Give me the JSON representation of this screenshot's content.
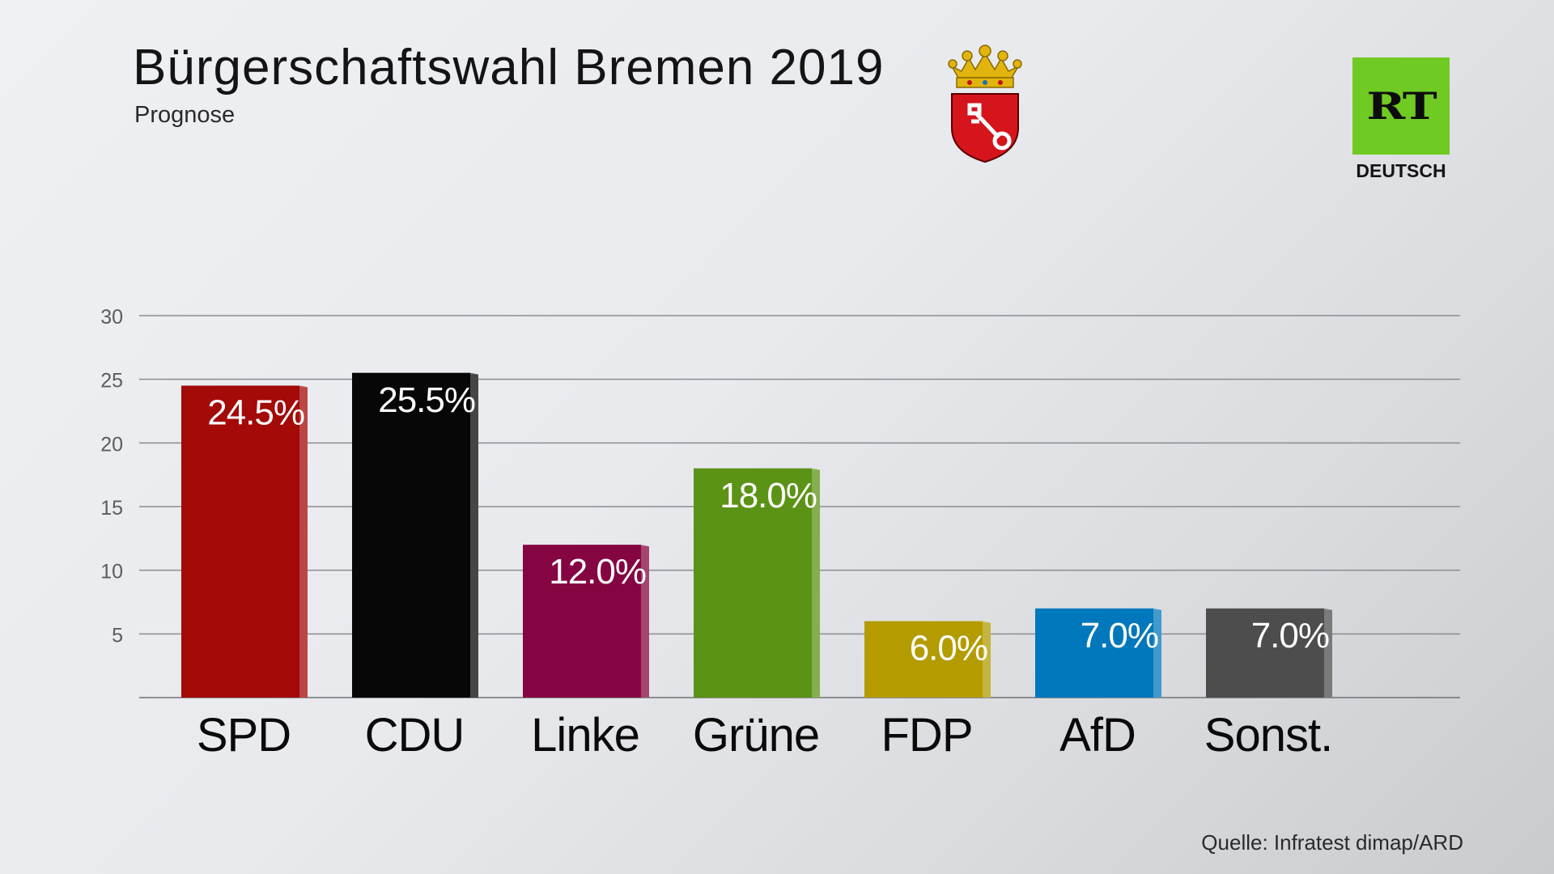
{
  "header": {
    "title": "Bürgerschaftswahl Bremen 2019",
    "subtitle": "Prognose",
    "coat_of_arms_icon": "bremen-coat-of-arms-icon"
  },
  "logo": {
    "main": "RT",
    "sub": "DEUTSCH",
    "color": "#6fca23"
  },
  "source": "Quelle: Infratest dimap/ARD",
  "chart_data": {
    "type": "bar",
    "title": "Bürgerschaftswahl Bremen 2019",
    "subtitle": "Prognose",
    "categories": [
      "SPD",
      "CDU",
      "Linke",
      "Grüne",
      "FDP",
      "AfD",
      "Sonst."
    ],
    "values": [
      24.5,
      25.5,
      12.0,
      18.0,
      6.0,
      7.0,
      7.0
    ],
    "value_labels": [
      "24.5%",
      "25.5%",
      "12.0%",
      "18.0%",
      "6.0%",
      "7.0%",
      "7.0%"
    ],
    "colors": [
      "#a30a08",
      "#070707",
      "#850542",
      "#5b9316",
      "#b39b00",
      "#0078bb",
      "#4d4d4d"
    ],
    "yticks": [
      5,
      10,
      15,
      20,
      25,
      30
    ],
    "ylim": [
      0,
      30
    ],
    "grid": true,
    "legend": "none"
  }
}
